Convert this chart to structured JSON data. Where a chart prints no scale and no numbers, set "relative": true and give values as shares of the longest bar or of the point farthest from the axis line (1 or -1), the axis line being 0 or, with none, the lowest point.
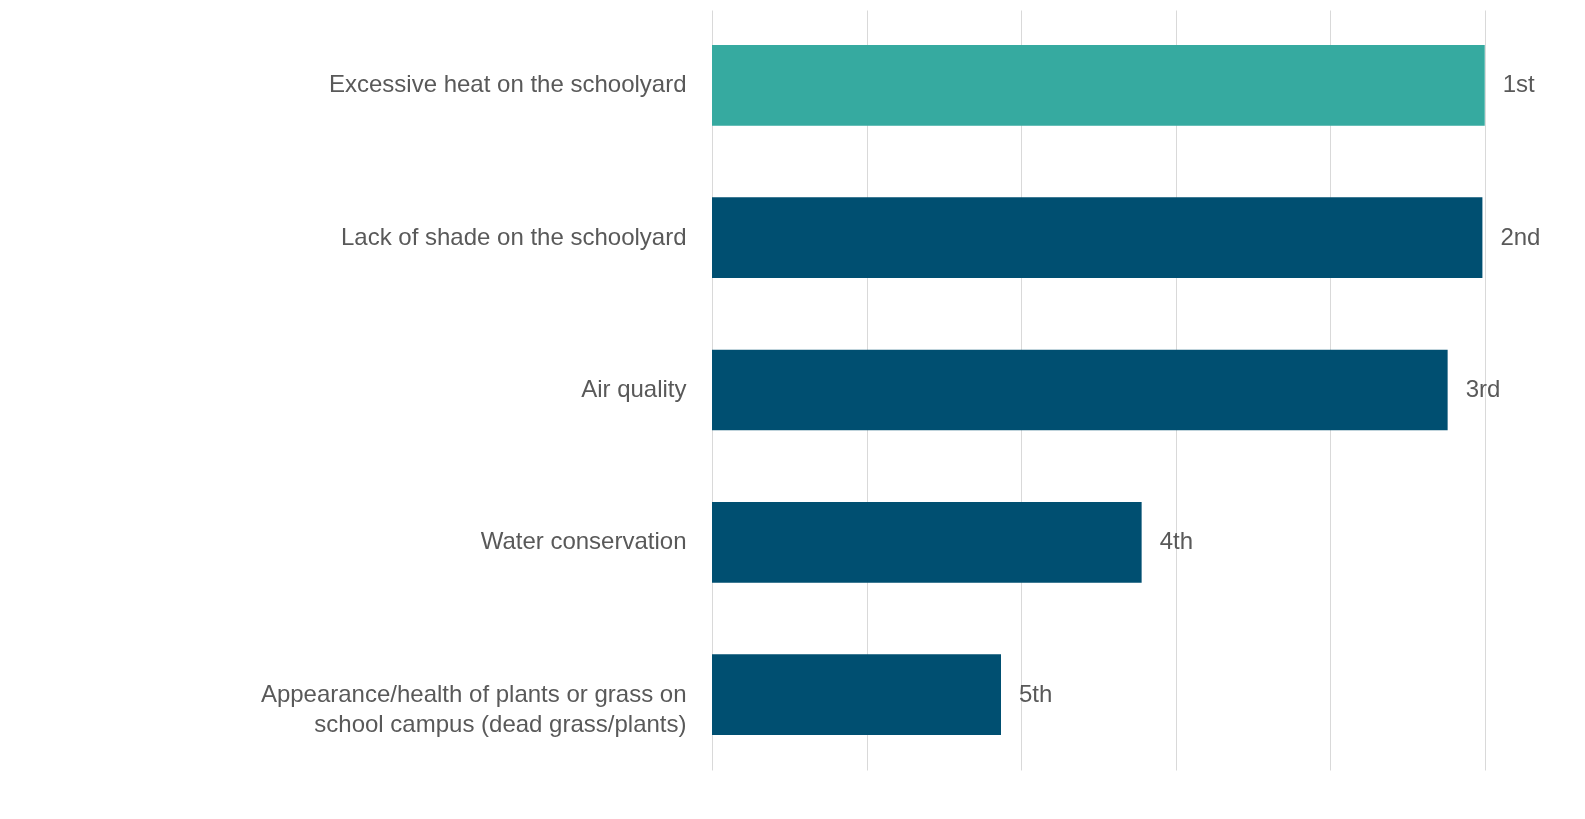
{
  "chart_data": {
    "type": "bar",
    "orientation": "horizontal",
    "relative": true,
    "categories": [
      "Excessive heat on the schoolyard",
      "Lack of shade on the schoolyard",
      "Air quality",
      "Water conservation",
      "Appearance/health of plants or grass on school campus (dead grass/plants)"
    ],
    "values": [
      1,
      0.997,
      0.952,
      0.556,
      0.374
    ],
    "colors": [
      "#36aaa0",
      "#004f71",
      "#004f71",
      "#004f71",
      "#004f71"
    ],
    "annotations": [
      {
        "text": "1st",
        "x": 1,
        "y": "Excessive heat on the schoolyard"
      },
      {
        "text": "2nd",
        "x": 0.997,
        "y": "Lack of shade on the schoolyard"
      },
      {
        "text": "3rd",
        "x": 0.952,
        "y": "Air quality"
      },
      {
        "text": "4th",
        "x": 0.556,
        "y": "Water conservation"
      },
      {
        "text": "5th",
        "x": 0.374,
        "y": "Appearance/health of plants or grass on school campus (dead grass/plants)"
      }
    ],
    "grid": "x"
  }
}
